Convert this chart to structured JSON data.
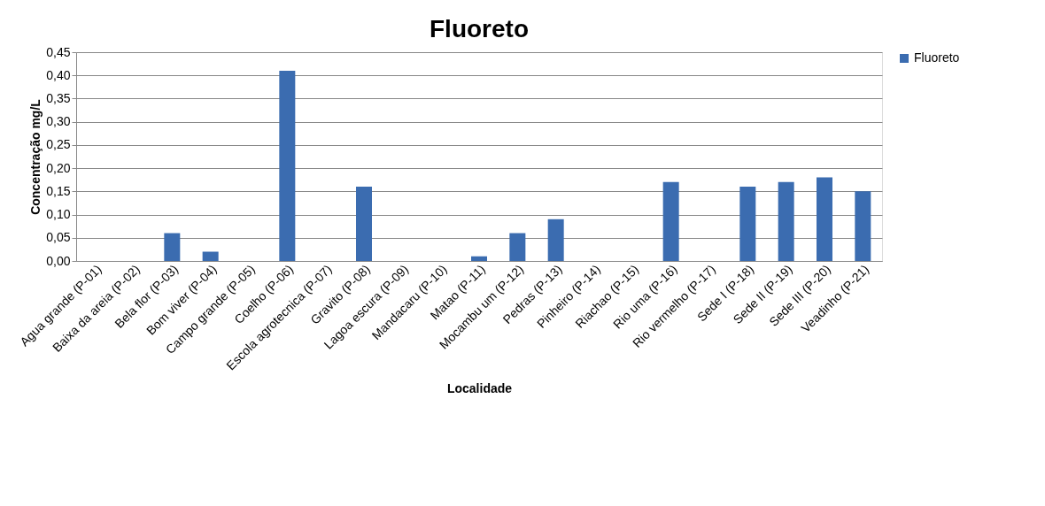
{
  "chart_data": {
    "type": "bar",
    "title": "Fluoreto",
    "xlabel": "Localidade",
    "ylabel": "Concentração  mg/L",
    "categories": [
      "Agua grande (P-01)",
      "Baixa da areia (P-02)",
      "Bela flor (P-03)",
      "Bom viver (P-04)",
      "Campo grande (P-05)",
      "Coelho (P-06)",
      "Escola agrotecnica (P-07)",
      "Gravito (P-08)",
      "Lagoa escura (P-09)",
      "Mandacaru (P-10)",
      "Matao (P-11)",
      "Mocambu um (P-12)",
      "Pedras (P-13)",
      "Pinheiro (P-14)",
      "Riachao (P-15)",
      "Rio uma (P-16)",
      "Rio vermelho (P-17)",
      "Sede I (P-18)",
      "Sede II (P-19)",
      "Sede III (P-20)",
      "Veadinho (P-21)"
    ],
    "series": [
      {
        "name": "Fluoreto",
        "color": "#3b6cb0",
        "values": [
          0,
          0,
          0.06,
          0.02,
          0,
          0.41,
          0,
          0.16,
          0,
          0,
          0.01,
          0.06,
          0.09,
          0,
          0,
          0.17,
          0,
          0.16,
          0.17,
          0.18,
          0.15
        ]
      }
    ],
    "ylim": [
      0,
      0.45
    ],
    "yticks": [
      {
        "value": 0,
        "label": "0,00"
      },
      {
        "value": 0.05,
        "label": "0,05"
      },
      {
        "value": 0.1,
        "label": "0,10"
      },
      {
        "value": 0.15,
        "label": "0,15"
      },
      {
        "value": 0.2,
        "label": "0,20"
      },
      {
        "value": 0.25,
        "label": "0,25"
      },
      {
        "value": 0.3,
        "label": "0,30"
      },
      {
        "value": 0.35,
        "label": "0,35"
      },
      {
        "value": 0.4,
        "label": "0,40"
      },
      {
        "value": 0.45,
        "label": "0,45"
      }
    ],
    "grid": "y",
    "legend": "right"
  }
}
